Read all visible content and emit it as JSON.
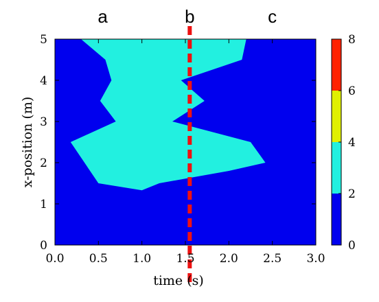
{
  "chart_data": {
    "type": "contour",
    "xlabel": "time (s)",
    "ylabel": "x-position (m)",
    "xlim": [
      0,
      3
    ],
    "ylim": [
      0,
      5
    ],
    "x_ticks": [
      0,
      0.5,
      1,
      1.5,
      2,
      2.5,
      3
    ],
    "x_tick_labels": [
      "0.0",
      "0.5",
      "1.0",
      "1.5",
      "2.0",
      "2.5",
      "3.0"
    ],
    "y_ticks": [
      0,
      1,
      2,
      3,
      4,
      5
    ],
    "y_tick_labels": [
      "0",
      "1",
      "2",
      "3",
      "4",
      "5"
    ],
    "colorbar": {
      "min": 0,
      "max": 8,
      "ticks": [
        0,
        2,
        4,
        6,
        8
      ],
      "tick_labels": [
        "0",
        "2",
        "4",
        "6",
        "8"
      ],
      "levels": [
        {
          "from": 0,
          "to": 2,
          "color": "#0000ee"
        },
        {
          "from": 2,
          "to": 4,
          "color": "#22f0e0"
        },
        {
          "from": 4,
          "to": 6,
          "color": "#e0f000"
        },
        {
          "from": 6,
          "to": 8,
          "color": "#ff2200"
        }
      ]
    },
    "background_level_color": "#0000ee",
    "region_2_to_4": {
      "color": "#22f0e0",
      "boundary": [
        [
          0.3,
          5.0
        ],
        [
          2.2,
          5.0
        ],
        [
          2.15,
          4.5
        ],
        [
          1.45,
          4.0
        ],
        [
          1.72,
          3.5
        ],
        [
          1.35,
          3.0
        ],
        [
          2.25,
          2.5
        ],
        [
          2.42,
          2.0
        ],
        [
          2.0,
          1.8
        ],
        [
          1.2,
          1.5
        ],
        [
          1.0,
          1.33
        ],
        [
          0.5,
          1.5
        ],
        [
          0.18,
          2.5
        ],
        [
          0.7,
          3.0
        ],
        [
          0.52,
          3.5
        ],
        [
          0.65,
          4.0
        ],
        [
          0.58,
          4.5
        ]
      ]
    },
    "vertical_marker": {
      "x": 1.55,
      "color": "#ee1111",
      "style": "dashed"
    },
    "annotations": [
      {
        "text": "a",
        "x": 0.55
      },
      {
        "text": "b",
        "x": 1.55
      },
      {
        "text": "c",
        "x": 2.5
      }
    ]
  }
}
